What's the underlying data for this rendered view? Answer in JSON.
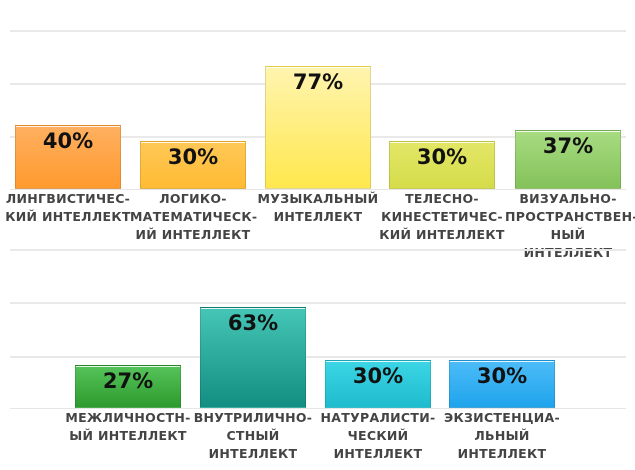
{
  "chart_data": [
    {
      "type": "bar",
      "title": "",
      "xlabel": "",
      "ylabel": "",
      "grid": true,
      "ylim": [
        0,
        100
      ],
      "categories": [
        "ЛИНГВИСТИЧЕС-\nКИЙ ИНТЕЛЛЕКТ",
        "ЛОГИКО-\nМАТЕМАТИЧЕСК-\nИЙ ИНТЕЛЛЕКТ",
        "МУЗЫКАЛЬНЫЙ\nИНТЕЛЛЕКТ",
        "ТЕЛЕСНО-\nКИНЕСТЕТИЧЕС-\nКИЙ ИНТЕЛЛЕКТ",
        "ВИЗУАЛЬНО-\nПРОСТРАНСТВЕН-\nНЫЙ ИНТЕЛЛЕКТ"
      ],
      "values": [
        40,
        30,
        77,
        30,
        37
      ],
      "labels": [
        "40%",
        "30%",
        "77%",
        "30%",
        "37%"
      ],
      "colors": [
        [
          "#ffb061",
          "#ff9a2e"
        ],
        [
          "#ffc857",
          "#ffbb33"
        ],
        [
          "#fff4b0",
          "#ffe84d"
        ],
        [
          "#e3e766",
          "#d5dc4a"
        ],
        [
          "#a8dc82",
          "#84c25a"
        ]
      ]
    },
    {
      "type": "bar",
      "title": "",
      "xlabel": "",
      "ylabel": "",
      "grid": true,
      "ylim": [
        0,
        100
      ],
      "categories": [
        "МЕЖЛИЧНОСТН-\nЫЙ ИНТЕЛЛЕКТ",
        "ВНУТРИЛИЧНО-\nСТНЫЙ\nИНТЕЛЛЕКТ",
        "НАТУРАЛИСТИ-\nЧЕСКИЙ\nИНТЕЛЛЕКТ",
        "ЭКЗИСТЕНЦИА-\nЛЬНЫЙ\nИНТЕЛЛЕКТ"
      ],
      "values": [
        27,
        63,
        30,
        30
      ],
      "labels": [
        "27%",
        "63%",
        "30%",
        "30%"
      ],
      "colors": [
        [
          "#56c45a",
          "#2e9a2e"
        ],
        [
          "#45c6b6",
          "#138e82"
        ],
        [
          "#3cd6e6",
          "#1fbccd"
        ],
        [
          "#4cbcf8",
          "#20a4ec"
        ]
      ]
    }
  ]
}
